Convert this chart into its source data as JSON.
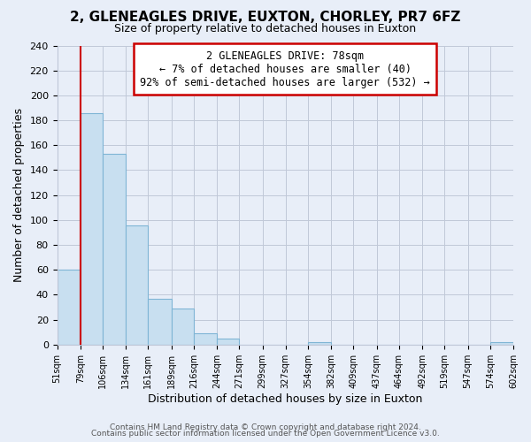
{
  "title": "2, GLENEAGLES DRIVE, EUXTON, CHORLEY, PR7 6FZ",
  "subtitle": "Size of property relative to detached houses in Euxton",
  "xlabel": "Distribution of detached houses by size in Euxton",
  "ylabel": "Number of detached properties",
  "bar_left_edges": [
    51,
    79,
    106,
    134,
    161,
    189,
    216,
    244,
    271,
    299,
    327,
    354,
    382,
    409,
    437,
    464,
    492,
    519,
    547,
    574
  ],
  "bar_widths": [
    28,
    27,
    28,
    27,
    28,
    27,
    28,
    27,
    28,
    28,
    27,
    28,
    27,
    28,
    27,
    28,
    27,
    28,
    27,
    28
  ],
  "bar_heights": [
    60,
    186,
    153,
    96,
    37,
    29,
    9,
    5,
    0,
    0,
    0,
    2,
    0,
    0,
    0,
    0,
    0,
    0,
    0,
    2
  ],
  "bar_color": "#c8dff0",
  "bar_edgecolor": "#7fb5d5",
  "tick_labels": [
    "51sqm",
    "79sqm",
    "106sqm",
    "134sqm",
    "161sqm",
    "189sqm",
    "216sqm",
    "244sqm",
    "271sqm",
    "299sqm",
    "327sqm",
    "354sqm",
    "382sqm",
    "409sqm",
    "437sqm",
    "464sqm",
    "492sqm",
    "519sqm",
    "547sqm",
    "574sqm",
    "602sqm"
  ],
  "ylim": [
    0,
    240
  ],
  "yticks": [
    0,
    20,
    40,
    60,
    80,
    100,
    120,
    140,
    160,
    180,
    200,
    220,
    240
  ],
  "vline_x": 79,
  "vline_color": "#cc0000",
  "annotation_title": "2 GLENEAGLES DRIVE: 78sqm",
  "annotation_line1": "← 7% of detached houses are smaller (40)",
  "annotation_line2": "92% of semi-detached houses are larger (532) →",
  "bg_color": "#e8eef8",
  "grid_color": "#c0c8d8",
  "footer1": "Contains HM Land Registry data © Crown copyright and database right 2024.",
  "footer2": "Contains public sector information licensed under the Open Government Licence v3.0."
}
